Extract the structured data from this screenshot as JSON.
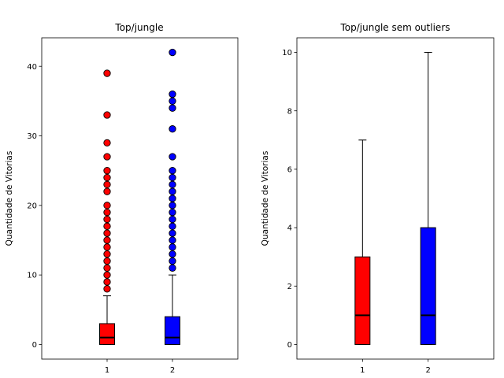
{
  "colors": {
    "series_1": "#ff0000",
    "series_2": "#0000ff"
  },
  "chart_data": [
    {
      "type": "boxplot",
      "title": "Top/jungle",
      "xlabel": "",
      "ylabel": "Quantidade de Vitorias",
      "categories": [
        "1",
        "2"
      ],
      "ylim": [
        -2.1,
        44.1
      ],
      "yticks": [
        0,
        10,
        20,
        30,
        40
      ],
      "boxes": [
        {
          "category": "1",
          "color": "#ff0000",
          "whislo": 0,
          "q1": 0,
          "median": 1,
          "q3": 3,
          "whishi": 7,
          "fliers": [
            8,
            9,
            10,
            11,
            12,
            13,
            14,
            15,
            16,
            17,
            18,
            19,
            20,
            22,
            23,
            24,
            25,
            27,
            29,
            33,
            39
          ]
        },
        {
          "category": "2",
          "color": "#0000ff",
          "whislo": 0,
          "q1": 0,
          "median": 1,
          "q3": 4,
          "whishi": 10,
          "fliers": [
            11,
            12,
            13,
            14,
            15,
            16,
            17,
            18,
            19,
            20,
            21,
            22,
            23,
            24,
            25,
            27,
            31,
            34,
            35,
            36,
            42
          ]
        }
      ]
    },
    {
      "type": "boxplot",
      "title": "Top/jungle sem outliers",
      "xlabel": "",
      "ylabel": "Quantidade de Vitorias",
      "categories": [
        "1",
        "2"
      ],
      "ylim": [
        -0.5,
        10.5
      ],
      "yticks": [
        0,
        2,
        4,
        6,
        8,
        10
      ],
      "boxes": [
        {
          "category": "1",
          "color": "#ff0000",
          "whislo": 0,
          "q1": 0,
          "median": 1,
          "q3": 3,
          "whishi": 7,
          "fliers": []
        },
        {
          "category": "2",
          "color": "#0000ff",
          "whislo": 0,
          "q1": 0,
          "median": 1,
          "q3": 4,
          "whishi": 10,
          "fliers": []
        }
      ]
    }
  ]
}
